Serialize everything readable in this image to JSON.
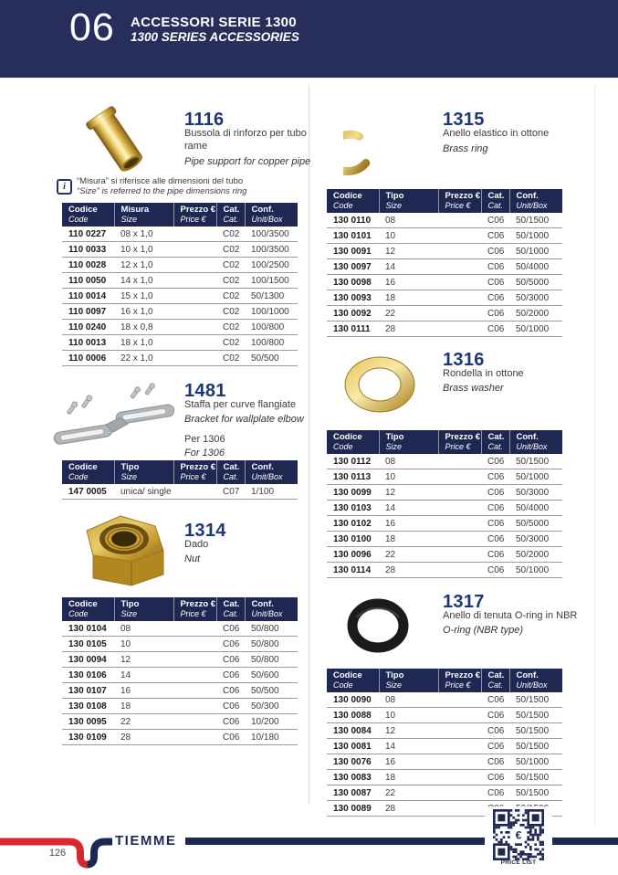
{
  "header": {
    "chapter": "06",
    "title_it": "ACCESSORI SERIE 1300",
    "title_en": "1300 SERIES ACCESSORIES"
  },
  "note": {
    "line_it": "“Misura” si riferisce alle dimensioni del tubo",
    "line_en": "“Size” is referred to the pipe dimensions ring"
  },
  "colors": {
    "header_navy": "#272e5b",
    "table_navy": "#1f2853",
    "brand_red": "#d7282f",
    "title_blue": "#1c3776"
  },
  "products": [
    {
      "id": "1116",
      "name_it": "Bussola di rinforzo per tubo rame",
      "name_en": "Pipe support for copper pipe",
      "image": "brass-pipe-support",
      "table": {
        "headers": [
          [
            "Codice",
            "Code"
          ],
          [
            "Misura",
            "Size"
          ],
          [
            "Prezzo €",
            "Price €"
          ],
          [
            "Cat.",
            "Cat."
          ],
          [
            "Conf.",
            "Unit/Box"
          ]
        ],
        "rows": [
          [
            "110 0227",
            "08 x 1,0",
            "",
            "C02",
            "100/3500"
          ],
          [
            "110 0033",
            "10 x 1,0",
            "",
            "C02",
            "100/3500"
          ],
          [
            "110 0028",
            "12 x 1,0",
            "",
            "C02",
            "100/2500"
          ],
          [
            "110 0050",
            "14 x 1,0",
            "",
            "C02",
            "100/1500"
          ],
          [
            "110 0014",
            "15 x 1,0",
            "",
            "C02",
            "50/1300"
          ],
          [
            "110 0097",
            "16 x 1,0",
            "",
            "C02",
            "100/1000"
          ],
          [
            "110 0240",
            "18 x 0,8",
            "",
            "C02",
            "100/800"
          ],
          [
            "110 0013",
            "18 x 1,0",
            "",
            "C02",
            "100/800"
          ],
          [
            "110 0006",
            "22 x 1,0",
            "",
            "C02",
            "50/500"
          ]
        ]
      }
    },
    {
      "id": "1315",
      "name_it": "Anello elastico in ottone",
      "name_en": "Brass ring",
      "image": "brass-ring",
      "table": {
        "headers": [
          [
            "Codice",
            "Code"
          ],
          [
            "Tipo",
            "Size"
          ],
          [
            "Prezzo €",
            "Price €"
          ],
          [
            "Cat.",
            "Cat."
          ],
          [
            "Conf.",
            "Unit/Box"
          ]
        ],
        "rows": [
          [
            "130 0110",
            "08",
            "",
            "C06",
            "50/1500"
          ],
          [
            "130 0101",
            "10",
            "",
            "C06",
            "50/1000"
          ],
          [
            "130 0091",
            "12",
            "",
            "C06",
            "50/1000"
          ],
          [
            "130 0097",
            "14",
            "",
            "C06",
            "50/4000"
          ],
          [
            "130 0098",
            "16",
            "",
            "C06",
            "50/5000"
          ],
          [
            "130 0093",
            "18",
            "",
            "C06",
            "50/3000"
          ],
          [
            "130 0092",
            "22",
            "",
            "C06",
            "50/2000"
          ],
          [
            "130 0111",
            "28",
            "",
            "C06",
            "50/1000"
          ]
        ]
      }
    },
    {
      "id": "1481",
      "name_it": "Staffa per curve flangiate",
      "name_en": "Bracket for wallplate elbow",
      "extra_it": "Per 1306",
      "extra_en": "For 1306",
      "image": "wallplate-bracket",
      "table": {
        "headers": [
          [
            "Codice",
            "Code"
          ],
          [
            "Tipo",
            "Size"
          ],
          [
            "Prezzo €",
            "Price €"
          ],
          [
            "Cat.",
            "Cat."
          ],
          [
            "Conf.",
            "Unit/Box"
          ]
        ],
        "rows": [
          [
            "147 0005",
            "unica/ single",
            "",
            "C07",
            "1/100"
          ]
        ]
      }
    },
    {
      "id": "1316",
      "name_it": "Rondella in ottone",
      "name_en": "Brass washer",
      "image": "brass-washer",
      "table": {
        "headers": [
          [
            "Codice",
            "Code"
          ],
          [
            "Tipo",
            "Size"
          ],
          [
            "Prezzo €",
            "Price €"
          ],
          [
            "Cat.",
            "Cat."
          ],
          [
            "Conf.",
            "Unit/Box"
          ]
        ],
        "rows": [
          [
            "130 0112",
            "08",
            "",
            "C06",
            "50/1500"
          ],
          [
            "130 0113",
            "10",
            "",
            "C06",
            "50/1000"
          ],
          [
            "130 0099",
            "12",
            "",
            "C06",
            "50/3000"
          ],
          [
            "130 0103",
            "14",
            "",
            "C06",
            "50/4000"
          ],
          [
            "130 0102",
            "16",
            "",
            "C06",
            "50/5000"
          ],
          [
            "130 0100",
            "18",
            "",
            "C06",
            "50/3000"
          ],
          [
            "130 0096",
            "22",
            "",
            "C06",
            "50/2000"
          ],
          [
            "130 0114",
            "28",
            "",
            "C06",
            "50/1000"
          ]
        ]
      }
    },
    {
      "id": "1314",
      "name_it": "Dado",
      "name_en": "Nut",
      "image": "brass-nut",
      "table": {
        "headers": [
          [
            "Codice",
            "Code"
          ],
          [
            "Tipo",
            "Size"
          ],
          [
            "Prezzo €",
            "Price €"
          ],
          [
            "Cat.",
            "Cat."
          ],
          [
            "Conf.",
            "Unit/Box"
          ]
        ],
        "rows": [
          [
            "130 0104",
            "08",
            "",
            "C06",
            "50/800"
          ],
          [
            "130 0105",
            "10",
            "",
            "C06",
            "50/800"
          ],
          [
            "130 0094",
            "12",
            "",
            "C06",
            "50/800"
          ],
          [
            "130 0106",
            "14",
            "",
            "C06",
            "50/600"
          ],
          [
            "130 0107",
            "16",
            "",
            "C06",
            "50/500"
          ],
          [
            "130 0108",
            "18",
            "",
            "C06",
            "50/300"
          ],
          [
            "130 0095",
            "22",
            "",
            "C06",
            "10/200"
          ],
          [
            "130 0109",
            "28",
            "",
            "C06",
            "10/180"
          ]
        ]
      }
    },
    {
      "id": "1317",
      "name_it": "Anello di tenuta O-ring in NBR",
      "name_en": "O-ring (NBR type)",
      "image": "o-ring",
      "table": {
        "headers": [
          [
            "Codice",
            "Code"
          ],
          [
            "Tipo",
            "Size"
          ],
          [
            "Prezzo €",
            "Price €"
          ],
          [
            "Cat.",
            "Cat."
          ],
          [
            "Conf.",
            "Unit/Box"
          ]
        ],
        "rows": [
          [
            "130 0090",
            "08",
            "",
            "C06",
            "50/1500"
          ],
          [
            "130 0088",
            "10",
            "",
            "C06",
            "50/1500"
          ],
          [
            "130 0084",
            "12",
            "",
            "C06",
            "50/1500"
          ],
          [
            "130 0081",
            "14",
            "",
            "C06",
            "50/1500"
          ],
          [
            "130 0076",
            "16",
            "",
            "C06",
            "50/1000"
          ],
          [
            "130 0083",
            "18",
            "",
            "C06",
            "50/1500"
          ],
          [
            "130 0087",
            "22",
            "",
            "C06",
            "50/1500"
          ],
          [
            "130 0089",
            "28",
            "",
            "C06",
            "50/1500"
          ]
        ]
      }
    }
  ],
  "footer": {
    "brand": "TIEMME",
    "page_number": "126",
    "qr_symbol": "€",
    "qr_label": "PRICE LIST"
  }
}
